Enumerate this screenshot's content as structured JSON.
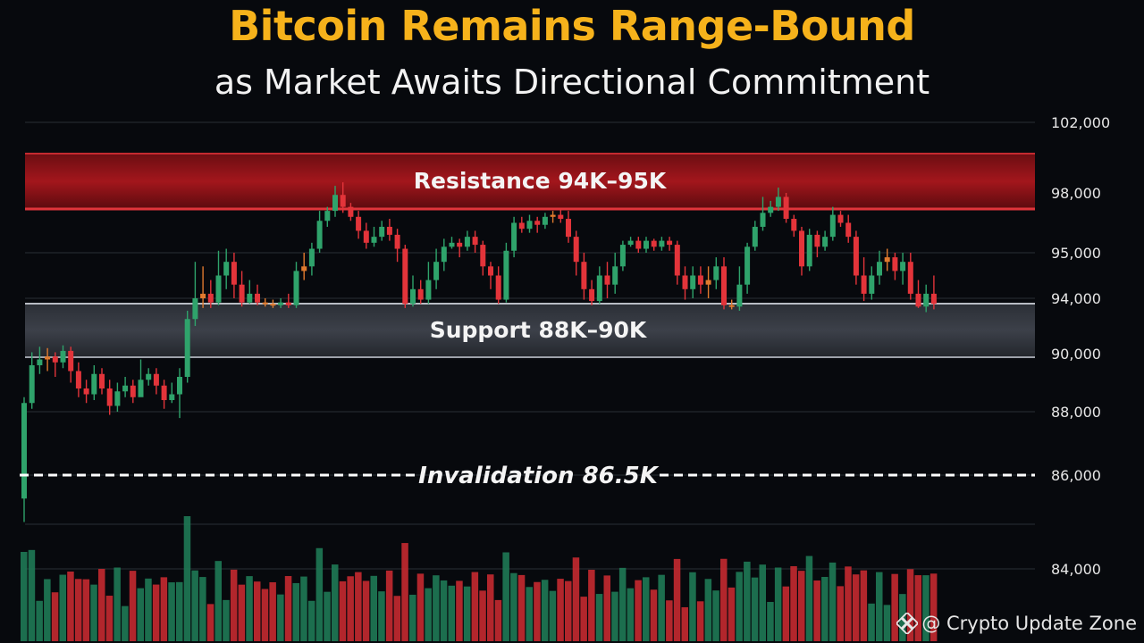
{
  "title": "Bitcoin Remains Range-Bound",
  "subtitle": "as Market Awaits Directional Commitment",
  "watermark": "@ Crypto Update Zone",
  "colors": {
    "title": "#f6b21b",
    "up": "#2fa36b",
    "down": "#e3343a",
    "neutral": "#e07a2e",
    "resistance": "#b81e24",
    "support": "#3a3f48"
  },
  "chart_data": {
    "type": "candlestick",
    "y_ticks": [
      "102,000",
      "98,000",
      "95,000",
      "94,000",
      "90,000",
      "88,000",
      "86,000",
      "84,000"
    ],
    "grid": true,
    "zones": [
      {
        "name": "resistance",
        "label": "Resistance 94K–95K"
      },
      {
        "name": "support",
        "label": "Support 88K–90K"
      }
    ],
    "lines": [
      {
        "name": "invalidation",
        "label": "Invalidation 86.5K",
        "style": "dashed"
      }
    ],
    "candles_ohlc": [
      [
        85500,
        88300,
        85000,
        88500
      ],
      [
        88300,
        89600,
        88100,
        90100
      ],
      [
        89600,
        89800,
        89300,
        90500
      ],
      [
        89800,
        89900,
        89400,
        90400
      ],
      [
        89900,
        89700,
        89200,
        90100
      ],
      [
        89700,
        90200,
        89500,
        90600
      ],
      [
        90200,
        89400,
        89000,
        90500
      ],
      [
        89400,
        88800,
        88500,
        89700
      ],
      [
        88800,
        88600,
        88300,
        89100
      ],
      [
        88600,
        89300,
        88400,
        89600
      ],
      [
        89300,
        88800,
        88600,
        89500
      ],
      [
        88800,
        88200,
        87900,
        89100
      ],
      [
        88200,
        88700,
        88000,
        89000
      ],
      [
        88700,
        88900,
        88500,
        89200
      ],
      [
        88900,
        88500,
        88300,
        89100
      ],
      [
        88500,
        89100,
        88800,
        89800
      ],
      [
        89100,
        89300,
        88900,
        89500
      ],
      [
        89300,
        88900,
        88600,
        89500
      ],
      [
        88900,
        88400,
        88100,
        89100
      ],
      [
        88400,
        88600,
        88300,
        89000
      ],
      [
        88600,
        89200,
        87800,
        89500
      ],
      [
        89200,
        92500,
        89000,
        93100
      ],
      [
        92500,
        94000,
        92000,
        94800
      ],
      [
        94000,
        94100,
        93300,
        94700
      ],
      [
        94100,
        93700,
        93300,
        94400
      ],
      [
        93700,
        94500,
        93500,
        95100
      ],
      [
        94500,
        94800,
        94200,
        95200
      ],
      [
        94800,
        94300,
        94000,
        95000
      ],
      [
        94300,
        93700,
        93400,
        94600
      ],
      [
        93700,
        94100,
        93600,
        94400
      ],
      [
        94100,
        93700,
        93500,
        94300
      ],
      [
        93700,
        93600,
        93400,
        94000
      ],
      [
        93600,
        93500,
        93300,
        93900
      ],
      [
        93500,
        93700,
        93300,
        94000
      ],
      [
        93700,
        93500,
        93300,
        94100
      ],
      [
        93500,
        94600,
        93300,
        94800
      ],
      [
        94600,
        94700,
        94400,
        95000
      ],
      [
        94700,
        95200,
        94500,
        95500
      ],
      [
        95200,
        96600,
        95000,
        97100
      ],
      [
        96600,
        97100,
        96300,
        97300
      ],
      [
        97100,
        97900,
        96800,
        98400
      ],
      [
        97900,
        97300,
        97000,
        98600
      ],
      [
        97300,
        96800,
        96600,
        97500
      ],
      [
        96800,
        96100,
        95700,
        97100
      ],
      [
        96100,
        95500,
        95200,
        96500
      ],
      [
        95500,
        95800,
        95300,
        96300
      ],
      [
        95800,
        96300,
        95600,
        96600
      ],
      [
        96300,
        95900,
        95600,
        96700
      ],
      [
        95900,
        95200,
        94800,
        96200
      ],
      [
        95200,
        93600,
        93300,
        95400
      ],
      [
        93600,
        94200,
        93400,
        94500
      ],
      [
        94200,
        93900,
        93600,
        94400
      ],
      [
        93900,
        94400,
        93600,
        94800
      ],
      [
        94400,
        94800,
        94200,
        95200
      ],
      [
        94800,
        95300,
        94600,
        95700
      ],
      [
        95300,
        95500,
        95200,
        95800
      ],
      [
        95500,
        95300,
        94900,
        95700
      ],
      [
        95300,
        95800,
        95100,
        96100
      ],
      [
        95800,
        95400,
        95000,
        96100
      ],
      [
        95400,
        94700,
        94500,
        95600
      ],
      [
        94700,
        94500,
        94200,
        94800
      ],
      [
        94500,
        93900,
        93600,
        94700
      ],
      [
        93900,
        95100,
        93700,
        95500
      ],
      [
        95100,
        96500,
        94900,
        96800
      ],
      [
        96500,
        96200,
        96000,
        96800
      ],
      [
        96200,
        96600,
        96000,
        96900
      ],
      [
        96600,
        96400,
        96000,
        96800
      ],
      [
        96400,
        96800,
        96200,
        97000
      ],
      [
        96800,
        96900,
        96500,
        97100
      ],
      [
        96900,
        96700,
        96500,
        97200
      ],
      [
        96700,
        95800,
        95500,
        97100
      ],
      [
        95800,
        94800,
        94500,
        96100
      ],
      [
        94800,
        94200,
        93900,
        95000
      ],
      [
        94200,
        93800,
        93500,
        94400
      ],
      [
        93800,
        94500,
        93600,
        94700
      ],
      [
        94500,
        94300,
        94000,
        94800
      ],
      [
        94300,
        94700,
        94100,
        95000
      ],
      [
        94700,
        95400,
        94600,
        95600
      ],
      [
        95400,
        95600,
        95300,
        95800
      ],
      [
        95600,
        95200,
        95000,
        95800
      ],
      [
        95200,
        95600,
        95000,
        95800
      ],
      [
        95600,
        95300,
        95100,
        95700
      ],
      [
        95300,
        95600,
        95100,
        95800
      ],
      [
        95600,
        95400,
        95100,
        95800
      ],
      [
        95400,
        94500,
        94300,
        95600
      ],
      [
        94500,
        94200,
        93900,
        94700
      ],
      [
        94200,
        94500,
        94000,
        94700
      ],
      [
        94500,
        94300,
        94100,
        94700
      ],
      [
        94300,
        94400,
        94000,
        94700
      ],
      [
        94400,
        94700,
        94200,
        94900
      ],
      [
        94700,
        93500,
        93200,
        94900
      ],
      [
        93500,
        93400,
        93200,
        93900
      ],
      [
        93400,
        94300,
        93100,
        94700
      ],
      [
        94300,
        95300,
        94100,
        95500
      ],
      [
        95300,
        96300,
        95100,
        96600
      ],
      [
        96300,
        97000,
        96100,
        97800
      ],
      [
        97000,
        97300,
        96800,
        97600
      ],
      [
        97300,
        97800,
        97100,
        98300
      ],
      [
        97800,
        96700,
        96500,
        98000
      ],
      [
        96700,
        96100,
        95800,
        96900
      ],
      [
        96100,
        94700,
        94500,
        96300
      ],
      [
        94700,
        95900,
        94600,
        96200
      ],
      [
        95900,
        95300,
        94900,
        96100
      ],
      [
        95300,
        95800,
        95100,
        96100
      ],
      [
        95800,
        96900,
        95600,
        97300
      ],
      [
        96900,
        96500,
        96300,
        97100
      ],
      [
        96500,
        95800,
        95500,
        96900
      ],
      [
        95800,
        94500,
        94300,
        96100
      ],
      [
        94500,
        94100,
        93800,
        94900
      ],
      [
        94100,
        94500,
        93900,
        94700
      ],
      [
        94500,
        94800,
        94300,
        95100
      ],
      [
        94800,
        94900,
        94600,
        95200
      ],
      [
        94900,
        94600,
        94400,
        95000
      ],
      [
        94600,
        94800,
        94300,
        95000
      ],
      [
        94800,
        94100,
        93900,
        95000
      ],
      [
        94100,
        93400,
        93300,
        94400
      ],
      [
        93400,
        94100,
        93000,
        94300
      ],
      [
        94100,
        93600,
        93200,
        94500
      ]
    ]
  }
}
